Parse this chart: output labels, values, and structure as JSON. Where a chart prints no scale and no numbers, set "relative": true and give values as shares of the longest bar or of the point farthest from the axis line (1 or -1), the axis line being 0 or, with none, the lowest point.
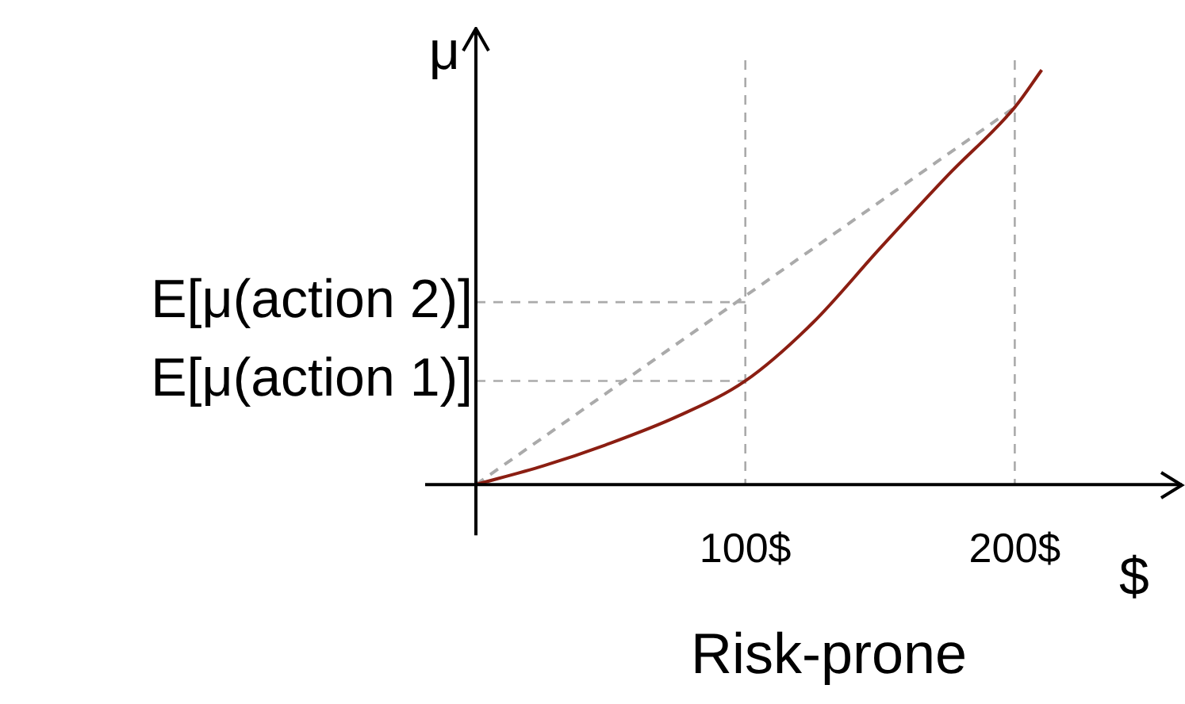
{
  "chart_data": {
    "type": "line",
    "title": "Risk-prone",
    "xlabel": "$",
    "ylabel": "μ",
    "relative": true,
    "xlim": [
      0,
      262
    ],
    "xticks": [
      {
        "value": 100,
        "label": "100$"
      },
      {
        "value": 200,
        "label": "200$"
      }
    ],
    "grid": false,
    "legend": false,
    "marker": "none",
    "series": [
      {
        "color": "#8b1e12",
        "line_style": "solid",
        "x": [
          0,
          25,
          50,
          75,
          100,
          125,
          150,
          175,
          200,
          210
        ],
        "values": [
          0,
          0.045,
          0.1,
          0.165,
          0.25,
          0.39,
          0.57,
          0.745,
          0.91,
          1
        ]
      },
      {
        "color": "#aaaaaa",
        "line_style": "dashed",
        "x": [
          0,
          200
        ],
        "values": [
          0,
          0.91
        ]
      }
    ],
    "ref_lines": [
      {
        "axis": "y",
        "value": 0.25,
        "label": "E[μ(action 1)]",
        "color": "#aaaaaa",
        "line_style": "dashed"
      },
      {
        "axis": "y",
        "value": 0.44,
        "label": "E[μ(action 2)]",
        "color": "#aaaaaa",
        "line_style": "dashed"
      },
      {
        "axis": "x",
        "value": 100,
        "color": "#aaaaaa",
        "line_style": "dashed"
      },
      {
        "axis": "x",
        "value": 200,
        "color": "#aaaaaa",
        "line_style": "dashed"
      }
    ]
  }
}
